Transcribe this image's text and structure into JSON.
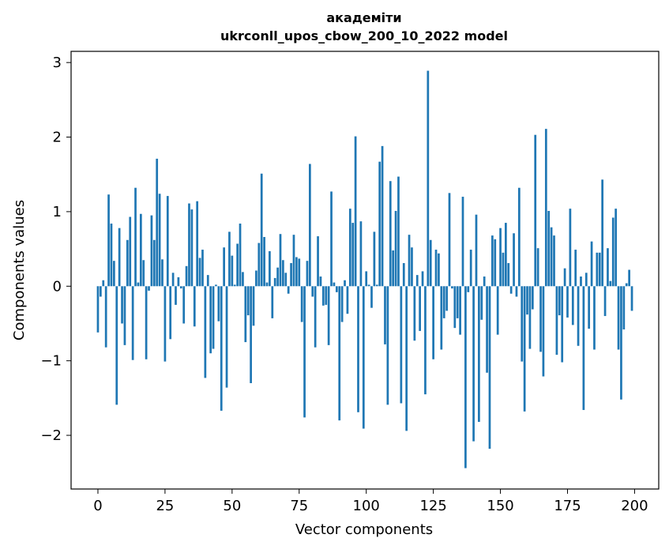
{
  "chart_data": {
    "type": "bar",
    "title_line1": "академіти",
    "title_line2": "ukrconll_upos_cbow_200_10_2022 model",
    "xlabel": "Vector components",
    "ylabel": "Components values",
    "xlim": [
      -10,
      209
    ],
    "ylim": [
      -2.72,
      3.15
    ],
    "xticks": [
      0,
      25,
      50,
      75,
      100,
      125,
      150,
      175,
      200
    ],
    "xtick_labels": [
      "0",
      "25",
      "50",
      "75",
      "100",
      "125",
      "150",
      "175",
      "200"
    ],
    "yticks": [
      -2,
      -1,
      0,
      1,
      2,
      3
    ],
    "ytick_labels": [
      "−2",
      "−1",
      "0",
      "1",
      "2",
      "3"
    ],
    "grid": false,
    "bar_color": "#1f77b4",
    "x": [
      0,
      1,
      2,
      3,
      4,
      5,
      6,
      7,
      8,
      9,
      10,
      11,
      12,
      13,
      14,
      15,
      16,
      17,
      18,
      19,
      20,
      21,
      22,
      23,
      24,
      25,
      26,
      27,
      28,
      29,
      30,
      31,
      32,
      33,
      34,
      35,
      36,
      37,
      38,
      39,
      40,
      41,
      42,
      43,
      44,
      45,
      46,
      47,
      48,
      49,
      50,
      51,
      52,
      53,
      54,
      55,
      56,
      57,
      58,
      59,
      60,
      61,
      62,
      63,
      64,
      65,
      66,
      67,
      68,
      69,
      70,
      71,
      72,
      73,
      74,
      75,
      76,
      77,
      78,
      79,
      80,
      81,
      82,
      83,
      84,
      85,
      86,
      87,
      88,
      89,
      90,
      91,
      92,
      93,
      94,
      95,
      96,
      97,
      98,
      99,
      100,
      101,
      102,
      103,
      104,
      105,
      106,
      107,
      108,
      109,
      110,
      111,
      112,
      113,
      114,
      115,
      116,
      117,
      118,
      119,
      120,
      121,
      122,
      123,
      124,
      125,
      126,
      127,
      128,
      129,
      130,
      131,
      132,
      133,
      134,
      135,
      136,
      137,
      138,
      139,
      140,
      141,
      142,
      143,
      144,
      145,
      146,
      147,
      148,
      149,
      150,
      151,
      152,
      153,
      154,
      155,
      156,
      157,
      158,
      159,
      160,
      161,
      162,
      163,
      164,
      165,
      166,
      167,
      168,
      169,
      170,
      171,
      172,
      173,
      174,
      175,
      176,
      177,
      178,
      179,
      180,
      181,
      182,
      183,
      184,
      185,
      186,
      187,
      188,
      189,
      190,
      191,
      192,
      193,
      194,
      195,
      196,
      197,
      198,
      199
    ],
    "values": [
      -0.62,
      -0.14,
      0.08,
      -0.82,
      1.23,
      0.84,
      0.34,
      -1.59,
      0.78,
      -0.5,
      -0.79,
      0.62,
      0.93,
      -0.99,
      1.32,
      0.05,
      0.97,
      0.35,
      -0.98,
      -0.06,
      0.95,
      0.62,
      1.71,
      1.24,
      0.36,
      -1.01,
      1.21,
      -0.71,
      0.18,
      -0.25,
      0.12,
      -0.03,
      -0.5,
      0.27,
      1.11,
      1.03,
      -0.54,
      1.14,
      0.38,
      0.49,
      -1.23,
      0.15,
      -0.9,
      -0.84,
      0.02,
      -0.47,
      -1.67,
      0.52,
      -1.36,
      0.73,
      0.41,
      0.02,
      0.57,
      0.84,
      0.19,
      -0.75,
      -0.39,
      -1.3,
      -0.53,
      0.21,
      0.58,
      1.51,
      0.66,
      0.05,
      0.47,
      -0.43,
      0.11,
      0.25,
      0.7,
      0.35,
      0.18,
      -0.1,
      0.31,
      0.69,
      0.39,
      0.37,
      -0.48,
      -1.76,
      0.34,
      1.64,
      -0.14,
      -0.82,
      0.67,
      0.13,
      -0.26,
      -0.25,
      -0.79,
      1.27,
      0.05,
      -0.08,
      -1.8,
      -0.48,
      0.08,
      -0.37,
      1.04,
      0.85,
      2.01,
      -1.69,
      0.87,
      -1.91,
      0.2,
      0.02,
      -0.29,
      0.73,
      0.02,
      1.67,
      1.88,
      -0.78,
      -1.59,
      1.41,
      0.48,
      1.01,
      1.47,
      -1.57,
      0.31,
      -1.94,
      0.69,
      0.52,
      -0.73,
      0.15,
      -0.6,
      0.2,
      -1.45,
      2.89,
      0.62,
      -0.98,
      0.49,
      0.44,
      -0.85,
      -0.43,
      -0.33,
      1.25,
      -0.03,
      -0.56,
      -0.43,
      -0.65,
      1.2,
      -2.44,
      -0.08,
      0.49,
      -2.08,
      0.96,
      -1.82,
      -0.45,
      0.13,
      -1.16,
      -2.18,
      0.68,
      0.63,
      -0.65,
      0.78,
      0.45,
      0.85,
      0.31,
      -0.1,
      0.71,
      -0.14,
      1.32,
      -1.01,
      -1.68,
      -0.38,
      -0.84,
      -0.31,
      2.03,
      0.51,
      -0.88,
      -1.21,
      2.11,
      1.01,
      0.79,
      0.68,
      -0.92,
      -0.39,
      -1.02,
      0.24,
      -0.42,
      1.04,
      -0.52,
      0.49,
      -0.8,
      0.13,
      -1.66,
      0.18,
      -0.57,
      0.6,
      -0.85,
      0.45,
      0.45,
      1.43,
      -0.4,
      0.51,
      0.07,
      0.92,
      1.04,
      -0.85,
      -1.52,
      -0.58,
      0.04,
      0.22,
      -0.33
    ]
  }
}
